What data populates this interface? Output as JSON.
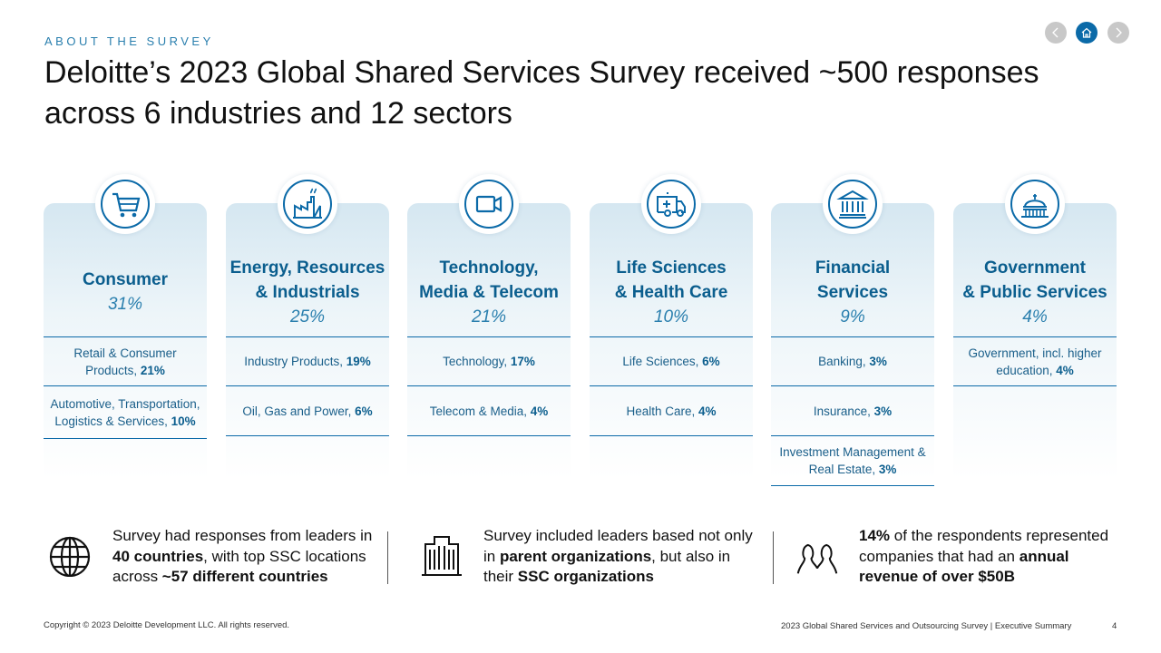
{
  "eyebrow": "ABOUT THE SURVEY",
  "title": "Deloitte’s 2023 Global Shared Services Survey received ~500 responses across 6 industries and 12 sectors",
  "nav": {
    "prev_icon": "chevron-left-icon",
    "home_icon": "home-icon",
    "next_icon": "chevron-right-icon"
  },
  "colors": {
    "accent": "#0b6aa8",
    "heading": "#0b5e8e",
    "card_top": "#d5e7f1"
  },
  "industries": [
    {
      "icon": "shopping-cart-icon",
      "name": "Consumer",
      "pct": "31%",
      "sectors": [
        {
          "label": "Retail & Consumer Products, ",
          "value": "21%"
        },
        {
          "label": "Automotive, Transportation, Logistics & Services, ",
          "value": "10%"
        }
      ]
    },
    {
      "icon": "factory-icon",
      "name": "Energy, Resources\n& Industrials",
      "pct": "25%",
      "sectors": [
        {
          "label": "Industry Products, ",
          "value": "19%"
        },
        {
          "label": "Oil, Gas and Power, ",
          "value": "6%"
        }
      ]
    },
    {
      "icon": "video-camera-icon",
      "name": "Technology,\nMedia & Telecom",
      "pct": "21%",
      "sectors": [
        {
          "label": "Technology, ",
          "value": "17%"
        },
        {
          "label": "Telecom & Media, ",
          "value": "4%"
        }
      ]
    },
    {
      "icon": "ambulance-icon",
      "name": "Life Sciences\n& Health Care",
      "pct": "10%",
      "sectors": [
        {
          "label": "Life Sciences, ",
          "value": "6%"
        },
        {
          "label": "Health Care, ",
          "value": "4%"
        }
      ]
    },
    {
      "icon": "bank-icon",
      "name": "Financial\nServices",
      "pct": "9%",
      "sectors": [
        {
          "label": "Banking, ",
          "value": "3%"
        },
        {
          "label": "Insurance, ",
          "value": "3%"
        },
        {
          "label": "Investment Management & Real Estate, ",
          "value": "3%"
        }
      ]
    },
    {
      "icon": "capitol-dome-icon",
      "name": "Government\n& Public Services",
      "pct": "4%",
      "sectors": [
        {
          "label": "Government, incl. higher education, ",
          "value": "4%"
        }
      ]
    }
  ],
  "facts": [
    {
      "icon": "globe-icon",
      "parts": [
        {
          "t": "Survey had responses from leaders in ",
          "b": false
        },
        {
          "t": "40 countries",
          "b": true
        },
        {
          "t": ", with top SSC locations across ",
          "b": false
        },
        {
          "t": "~57 different countries",
          "b": true
        }
      ]
    },
    {
      "icon": "office-building-icon",
      "parts": [
        {
          "t": "Survey included leaders based not only in ",
          "b": false
        },
        {
          "t": "parent organizations",
          "b": true
        },
        {
          "t": ", but also in their ",
          "b": false
        },
        {
          "t": "SSC organizations",
          "b": true
        }
      ]
    },
    {
      "icon": "people-icon",
      "parts": [
        {
          "t": "14%",
          "b": true
        },
        {
          "t": " of the respondents represented companies that had an ",
          "b": false
        },
        {
          "t": "annual revenue of over $50B",
          "b": true
        }
      ]
    }
  ],
  "footer": {
    "copyright": "Copyright © 2023 Deloitte Development LLC. All rights reserved.",
    "doc_title": "2023 Global Shared Services and Outsourcing Survey | Executive Summary",
    "page": "4"
  }
}
